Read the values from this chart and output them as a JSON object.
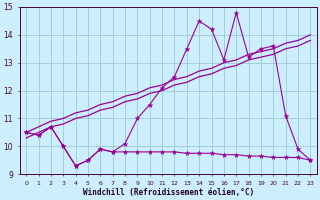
{
  "xlabel": "Windchill (Refroidissement éolien,°C)",
  "background_color": "#cceeff",
  "grid_color": "#99cccc",
  "line_color": "#990099",
  "hours": [
    0,
    1,
    2,
    3,
    4,
    5,
    6,
    7,
    8,
    9,
    10,
    11,
    12,
    13,
    14,
    15,
    16,
    17,
    18,
    19,
    20,
    21,
    22,
    23
  ],
  "windchill_line": [
    10.5,
    10.4,
    10.7,
    10.0,
    9.3,
    9.5,
    9.9,
    9.8,
    10.1,
    11.0,
    11.5,
    12.1,
    12.5,
    13.5,
    14.5,
    14.2,
    13.1,
    14.8,
    13.2,
    13.5,
    13.6,
    11.1,
    9.9,
    9.5
  ],
  "temp_line": [
    10.5,
    10.4,
    10.7,
    10.0,
    9.3,
    9.5,
    9.9,
    9.8,
    9.8,
    9.8,
    9.8,
    9.8,
    9.8,
    9.75,
    9.75,
    9.75,
    9.7,
    9.7,
    9.65,
    9.65,
    9.6,
    9.6,
    9.6,
    9.5
  ],
  "regression1": [
    10.5,
    10.7,
    10.9,
    11.0,
    11.2,
    11.3,
    11.5,
    11.6,
    11.8,
    11.9,
    12.1,
    12.2,
    12.4,
    12.5,
    12.7,
    12.8,
    13.0,
    13.1,
    13.3,
    13.4,
    13.5,
    13.7,
    13.8,
    14.0
  ],
  "regression2": [
    10.3,
    10.5,
    10.7,
    10.8,
    11.0,
    11.1,
    11.3,
    11.4,
    11.6,
    11.7,
    11.9,
    12.0,
    12.2,
    12.3,
    12.5,
    12.6,
    12.8,
    12.9,
    13.1,
    13.2,
    13.3,
    13.5,
    13.6,
    13.8
  ],
  "ylim": [
    9.0,
    15.0
  ],
  "yticks": [
    9,
    10,
    11,
    12,
    13,
    14,
    15
  ],
  "figwidth": 3.2,
  "figheight": 2.0,
  "dpi": 100
}
